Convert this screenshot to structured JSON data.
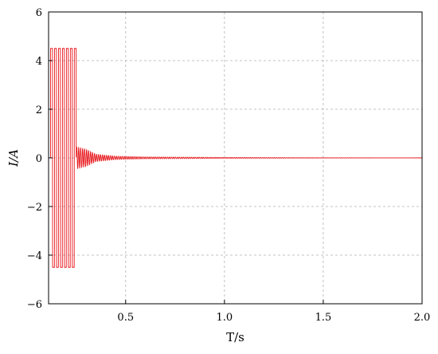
{
  "chart_data": {
    "type": "line",
    "title": "",
    "xlabel": "T/s",
    "ylabel": "I/A",
    "xlim": [
      0.11,
      2.0
    ],
    "ylim": [
      -6,
      6
    ],
    "x_ticks": [
      0.5,
      1.0,
      1.5,
      2.0
    ],
    "x_tick_labels": [
      "0.5",
      "1.0",
      "1.5",
      "2.0"
    ],
    "y_ticks": [
      -6,
      -4,
      -2,
      0,
      2,
      4,
      6
    ],
    "y_tick_labels": [
      "−6",
      "−4",
      "−2",
      "0",
      "2",
      "4",
      "6"
    ],
    "grid": true,
    "grid_style": "dashed",
    "legend": "none",
    "series": [
      {
        "color": "#e8161b",
        "description_points": {
          "saturated_region": {
            "x_start": 0.12,
            "x_end": 0.25,
            "peak": 4.5,
            "trough": -4.5
          },
          "decay": [
            {
              "x": 0.25,
              "amp": 0.45
            },
            {
              "x": 0.3,
              "amp": 0.35
            },
            {
              "x": 0.35,
              "amp": 0.15
            },
            {
              "x": 0.45,
              "amp": 0.07
            },
            {
              "x": 0.6,
              "amp": 0.04
            },
            {
              "x": 1.0,
              "amp": 0.02
            },
            {
              "x": 1.5,
              "amp": 0.008
            },
            {
              "x": 2.0,
              "amp": 0.0
            }
          ]
        }
      }
    ]
  },
  "colors": {
    "line": "#e8161b",
    "grid": "#b0b0b0",
    "axis": "#000000"
  }
}
